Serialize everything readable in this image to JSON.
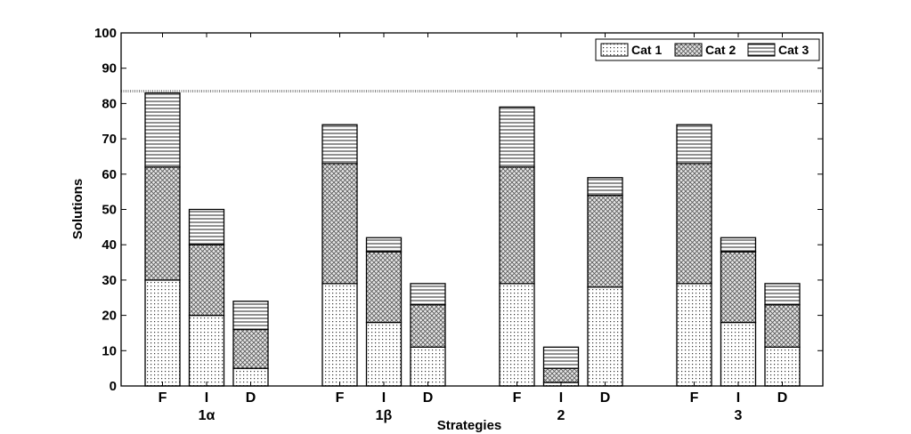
{
  "chart_data": {
    "type": "bar",
    "stacked": true,
    "xlabel": "Strategies",
    "ylabel": "Solutions",
    "ylim": [
      0,
      100
    ],
    "yticks": [
      0,
      10,
      20,
      30,
      40,
      50,
      60,
      70,
      80,
      90,
      100
    ],
    "reference_line": 83.5,
    "legend_position": "top-right",
    "groups": [
      {
        "label": "1α",
        "categories": [
          "F",
          "I",
          "D"
        ]
      },
      {
        "label": "1β",
        "categories": [
          "F",
          "I",
          "D"
        ]
      },
      {
        "label": "2",
        "categories": [
          "F",
          "I",
          "D"
        ]
      },
      {
        "label": "3",
        "categories": [
          "F",
          "I",
          "D"
        ]
      }
    ],
    "series": [
      {
        "name": "Cat 1",
        "pattern": "dots",
        "values": [
          30,
          20,
          5,
          29,
          18,
          11,
          29,
          1,
          28,
          29,
          18,
          11
        ]
      },
      {
        "name": "Cat 2",
        "pattern": "crosshatch",
        "values": [
          32,
          20,
          11,
          34,
          20,
          12,
          33,
          4,
          26,
          34,
          20,
          12
        ]
      },
      {
        "name": "Cat 3",
        "pattern": "horizontal-lines",
        "values": [
          21,
          10,
          8,
          11,
          4,
          6,
          17,
          6,
          5,
          11,
          4,
          6
        ]
      }
    ]
  }
}
